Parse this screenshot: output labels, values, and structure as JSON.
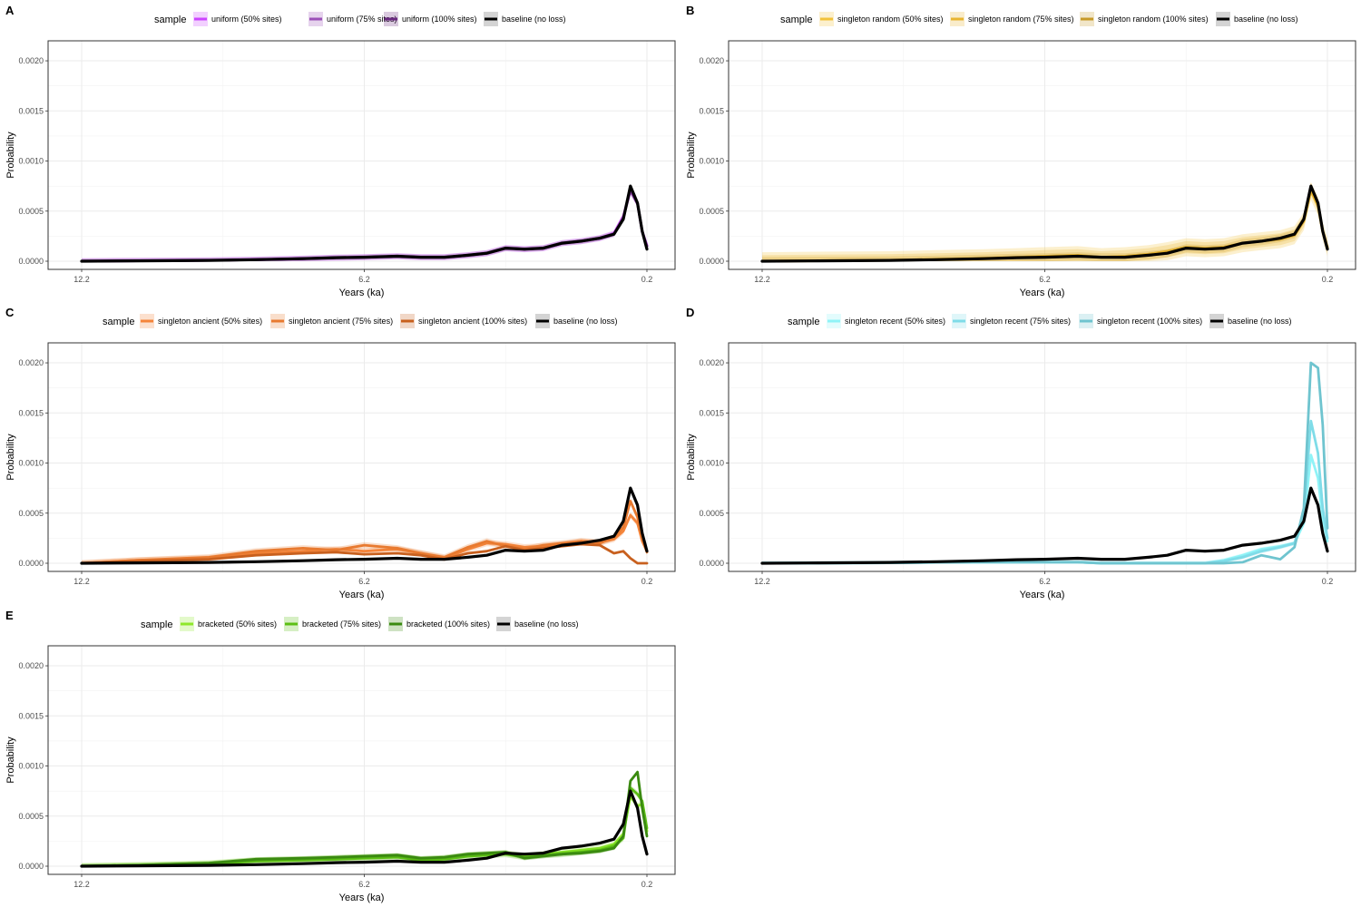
{
  "figure": {
    "legend_title": "sample",
    "xlabel": "Years (ka)",
    "ylabel": "Probability",
    "x_ticks": [
      12.2,
      6.2,
      0.2
    ],
    "x_tick_labels": [
      "12.2",
      "6.2",
      "0.2"
    ],
    "y_ticks": [
      0,
      0.0005,
      0.001,
      0.0015,
      0.002
    ],
    "y_tick_labels": [
      "0.0000",
      "0.0005",
      "0.0010",
      "0.0015",
      "0.0020"
    ]
  },
  "chart_data": [
    {
      "panel": "A",
      "type": "line",
      "xlabel": "Years (ka)",
      "ylabel": "Probability",
      "xlim": [
        12.2,
        0.2
      ],
      "ylim": [
        0,
        0.0021
      ],
      "x_reversed": true,
      "grid": true,
      "legend_position": "top",
      "legend_title": "sample",
      "x": [
        12.2,
        11.0,
        9.5,
        8.5,
        7.5,
        6.8,
        6.2,
        5.5,
        5.0,
        4.5,
        4.0,
        3.6,
        3.2,
        2.8,
        2.4,
        2.0,
        1.6,
        1.2,
        0.9,
        0.7,
        0.55,
        0.4,
        0.3,
        0.2
      ],
      "series": [
        {
          "name": "uniform (50% sites)",
          "color": "#cc44ff",
          "band": 3e-05,
          "values": [
            0.0,
            4e-06,
            8e-06,
            1.5e-05,
            2.5e-05,
            3.5e-05,
            4e-05,
            5e-05,
            4e-05,
            4e-05,
            6e-05,
            8e-05,
            0.00013,
            0.00012,
            0.00013,
            0.00018,
            0.0002,
            0.00023,
            0.00028,
            0.00045,
            0.00072,
            0.00058,
            0.0003,
            0.00016
          ]
        },
        {
          "name": "uniform (75% sites)",
          "color": "#9b4fb8",
          "band": 3e-05,
          "values": [
            0.0,
            4e-06,
            8e-06,
            1.5e-05,
            2.5e-05,
            3.5e-05,
            4e-05,
            5e-05,
            4e-05,
            4e-05,
            6e-05,
            8e-05,
            0.00013,
            0.00012,
            0.00013,
            0.00018,
            0.0002,
            0.00023,
            0.00027,
            0.00044,
            0.0007,
            0.00057,
            0.00029,
            0.00015
          ]
        },
        {
          "name": "uniform (100% sites)",
          "color": "#6a2a80",
          "band": 2e-05,
          "values": [
            0.0,
            4e-06,
            8e-06,
            1.5e-05,
            2.5e-05,
            3.5e-05,
            4e-05,
            5e-05,
            4e-05,
            4e-05,
            6e-05,
            8e-05,
            0.00013,
            0.00012,
            0.00013,
            0.00018,
            0.0002,
            0.00023,
            0.00027,
            0.00043,
            0.00072,
            0.00058,
            0.0003,
            0.00015
          ]
        },
        {
          "name": "baseline (no loss)",
          "color": "#000000",
          "band": 0,
          "values": [
            0.0,
            4e-06,
            8e-06,
            1.5e-05,
            2.5e-05,
            3.5e-05,
            4e-05,
            5e-05,
            4e-05,
            4e-05,
            6e-05,
            8e-05,
            0.00013,
            0.00012,
            0.00013,
            0.00018,
            0.0002,
            0.00023,
            0.00027,
            0.00042,
            0.00075,
            0.00058,
            0.0003,
            0.00012
          ]
        }
      ]
    },
    {
      "panel": "B",
      "type": "line",
      "xlabel": "Years (ka)",
      "ylabel": "Probability",
      "xlim": [
        12.2,
        0.2
      ],
      "ylim": [
        0,
        0.0021
      ],
      "x_reversed": true,
      "grid": true,
      "legend_position": "top",
      "legend_title": "sample",
      "x": [
        12.2,
        11.0,
        9.5,
        8.5,
        7.5,
        6.8,
        6.2,
        5.5,
        5.0,
        4.5,
        4.0,
        3.6,
        3.2,
        2.8,
        2.4,
        2.0,
        1.6,
        1.2,
        0.9,
        0.7,
        0.55,
        0.4,
        0.3,
        0.2
      ],
      "series": [
        {
          "name": "singleton random (50% sites)",
          "color": "#f2c23a",
          "band": 9e-05,
          "values": [
            0.0,
            5e-06,
            1e-05,
            2e-05,
            3e-05,
            4e-05,
            5e-05,
            6e-05,
            4e-05,
            5e-05,
            7e-05,
            0.0001,
            0.00014,
            0.00013,
            0.00014,
            0.00018,
            0.0002,
            0.00022,
            0.00026,
            0.0004,
            0.0007,
            0.00055,
            0.0003,
            0.00014
          ]
        },
        {
          "name": "singleton random (75% sites)",
          "color": "#e8b530",
          "band": 6e-05,
          "values": [
            0.0,
            5e-06,
            1e-05,
            2e-05,
            3e-05,
            4e-05,
            5e-05,
            6e-05,
            4e-05,
            5e-05,
            7e-05,
            0.0001,
            0.00014,
            0.00013,
            0.00014,
            0.00018,
            0.0002,
            0.00022,
            0.00026,
            0.0004,
            0.00072,
            0.00056,
            0.0003,
            0.00014
          ]
        },
        {
          "name": "singleton random (100% sites)",
          "color": "#c79a28",
          "band": 4e-05,
          "values": [
            0.0,
            4e-06,
            8e-06,
            1.5e-05,
            2.5e-05,
            3.5e-05,
            4e-05,
            5e-05,
            4e-05,
            4e-05,
            6e-05,
            8e-05,
            0.00013,
            0.00012,
            0.00013,
            0.00018,
            0.0002,
            0.00023,
            0.00027,
            0.00042,
            0.00074,
            0.00058,
            0.0003,
            0.00013
          ]
        },
        {
          "name": "baseline (no loss)",
          "color": "#000000",
          "band": 0,
          "values": [
            0.0,
            4e-06,
            8e-06,
            1.5e-05,
            2.5e-05,
            3.5e-05,
            4e-05,
            5e-05,
            4e-05,
            4e-05,
            6e-05,
            8e-05,
            0.00013,
            0.00012,
            0.00013,
            0.00018,
            0.0002,
            0.00023,
            0.00027,
            0.00042,
            0.00075,
            0.00058,
            0.0003,
            0.00012
          ]
        }
      ]
    },
    {
      "panel": "C",
      "type": "line",
      "xlabel": "Years (ka)",
      "ylabel": "Probability",
      "xlim": [
        12.2,
        0.2
      ],
      "ylim": [
        0,
        0.0021
      ],
      "x_reversed": true,
      "grid": true,
      "legend_position": "top",
      "legend_title": "sample",
      "x": [
        12.2,
        11.0,
        9.5,
        8.5,
        7.5,
        6.8,
        6.2,
        5.5,
        5.0,
        4.5,
        4.0,
        3.6,
        3.2,
        2.8,
        2.4,
        2.0,
        1.6,
        1.2,
        0.9,
        0.7,
        0.55,
        0.4,
        0.3,
        0.2
      ],
      "series": [
        {
          "name": "singleton ancient (50% sites)",
          "color": "#f5843a",
          "band": 3e-05,
          "values": [
            0.0,
            3e-05,
            5e-05,
            0.0001,
            0.00012,
            0.00014,
            0.00012,
            0.00014,
            0.0001,
            5e-05,
            0.00014,
            0.0002,
            0.00019,
            0.00016,
            0.00017,
            0.00019,
            0.00022,
            0.00021,
            0.00024,
            0.00032,
            0.00048,
            0.0004,
            0.00022,
            0.00012
          ]
        },
        {
          "name": "singleton ancient (75% sites)",
          "color": "#e87a30",
          "band": 3e-05,
          "values": [
            0.0,
            3e-05,
            6e-05,
            0.00012,
            0.00015,
            0.00013,
            0.00018,
            0.00015,
            0.0001,
            6e-05,
            0.00016,
            0.00022,
            0.00017,
            0.00014,
            0.00018,
            0.0002,
            0.00022,
            0.0002,
            0.00026,
            0.00036,
            0.00062,
            0.00046,
            0.00024,
            0.00011
          ]
        },
        {
          "name": "singleton ancient (100% sites)",
          "color": "#c8601e",
          "band": 1e-05,
          "values": [
            0.0,
            2e-05,
            4e-05,
            8e-05,
            0.0001,
            0.00011,
            9e-05,
            0.0001,
            8e-05,
            4e-05,
            0.0001,
            0.00012,
            0.00017,
            0.00013,
            0.00015,
            0.00017,
            0.00019,
            0.00018,
            0.0001,
            0.00012,
            5e-05,
            0.0,
            0.0,
            0.0
          ]
        },
        {
          "name": "baseline (no loss)",
          "color": "#000000",
          "band": 0,
          "values": [
            0.0,
            4e-06,
            8e-06,
            1.5e-05,
            2.5e-05,
            3.5e-05,
            4e-05,
            5e-05,
            4e-05,
            4e-05,
            6e-05,
            8e-05,
            0.00013,
            0.00012,
            0.00013,
            0.00018,
            0.0002,
            0.00023,
            0.00027,
            0.00042,
            0.00075,
            0.00058,
            0.0003,
            0.00012
          ]
        }
      ]
    },
    {
      "panel": "D",
      "type": "line",
      "xlabel": "Years (ka)",
      "ylabel": "Probability",
      "xlim": [
        12.2,
        0.2
      ],
      "ylim": [
        0,
        0.0021
      ],
      "x_reversed": true,
      "grid": true,
      "legend_position": "top",
      "legend_title": "sample",
      "x": [
        12.2,
        11.0,
        9.5,
        8.5,
        7.5,
        6.8,
        6.2,
        5.5,
        5.0,
        4.5,
        4.0,
        3.6,
        3.2,
        2.8,
        2.4,
        2.0,
        1.6,
        1.2,
        0.9,
        0.7,
        0.55,
        0.4,
        0.3,
        0.2
      ],
      "series": [
        {
          "name": "singleton recent (50% sites)",
          "color": "#8ff3f7",
          "band": 2e-05,
          "values": [
            0.0,
            2e-06,
            4e-06,
            8e-06,
            1e-05,
            1e-05,
            1e-05,
            1e-05,
            0.0,
            0.0,
            0.0,
            0.0,
            0.0,
            0.0,
            3e-05,
            8e-05,
            0.00014,
            0.00017,
            0.0002,
            0.0004,
            0.00108,
            0.00085,
            0.00045,
            0.00022
          ]
        },
        {
          "name": "singleton recent (75% sites)",
          "color": "#7fdce8",
          "band": 2e-05,
          "values": [
            0.0,
            2e-06,
            4e-06,
            8e-06,
            1e-05,
            1e-05,
            1e-05,
            1e-05,
            0.0,
            0.0,
            0.0,
            0.0,
            0.0,
            0.0,
            2e-05,
            6e-05,
            0.00012,
            0.00016,
            0.0002,
            0.0005,
            0.00142,
            0.0011,
            0.00055,
            0.00025
          ]
        },
        {
          "name": "singleton recent (100% sites)",
          "color": "#6fc4cf",
          "band": 1e-05,
          "values": [
            0.0,
            2e-06,
            4e-06,
            8e-06,
            1e-05,
            1e-05,
            1e-05,
            1e-05,
            0.0,
            0.0,
            0.0,
            0.0,
            0.0,
            0.0,
            0.0,
            1e-05,
            8e-05,
            4e-05,
            0.00016,
            0.00055,
            0.002,
            0.00195,
            0.00138,
            0.00035
          ]
        },
        {
          "name": "baseline (no loss)",
          "color": "#000000",
          "band": 0,
          "values": [
            0.0,
            4e-06,
            8e-06,
            1.5e-05,
            2.5e-05,
            3.5e-05,
            4e-05,
            5e-05,
            4e-05,
            4e-05,
            6e-05,
            8e-05,
            0.00013,
            0.00012,
            0.00013,
            0.00018,
            0.0002,
            0.00023,
            0.00027,
            0.00042,
            0.00075,
            0.00058,
            0.0003,
            0.00012
          ]
        }
      ]
    },
    {
      "panel": "E",
      "type": "line",
      "xlabel": "Years (ka)",
      "ylabel": "Probability",
      "xlim": [
        12.2,
        0.2
      ],
      "ylim": [
        0,
        0.0021
      ],
      "x_reversed": true,
      "grid": true,
      "legend_position": "top",
      "legend_title": "sample",
      "x": [
        12.2,
        11.0,
        9.5,
        8.5,
        7.5,
        6.8,
        6.2,
        5.5,
        5.0,
        4.5,
        4.0,
        3.6,
        3.2,
        2.8,
        2.4,
        2.0,
        1.6,
        1.2,
        0.9,
        0.7,
        0.55,
        0.4,
        0.3,
        0.2
      ],
      "series": [
        {
          "name": "bracketed (50% sites)",
          "color": "#8ee82a",
          "band": 3e-05,
          "values": [
            0.0,
            1e-05,
            3e-05,
            6e-05,
            7e-05,
            8e-05,
            9e-05,
            0.0001,
            7e-05,
            8e-05,
            0.00011,
            0.00012,
            0.00013,
            0.0001,
            0.00012,
            0.00014,
            0.00016,
            0.00018,
            0.00022,
            0.00032,
            0.0007,
            0.0006,
            0.00062,
            0.00035
          ]
        },
        {
          "name": "bracketed (75% sites)",
          "color": "#5cbf14",
          "band": 3e-05,
          "values": [
            0.0,
            1e-05,
            2e-05,
            5e-05,
            6e-05,
            7e-05,
            8e-05,
            9e-05,
            6e-05,
            7e-05,
            0.0001,
            0.00011,
            0.00012,
            9e-05,
            0.00011,
            0.00012,
            0.00014,
            0.00016,
            0.0002,
            0.00028,
            0.00078,
            0.00072,
            0.00065,
            0.00038
          ]
        },
        {
          "name": "bracketed (100% sites)",
          "color": "#3a8a10",
          "band": 2e-05,
          "values": [
            0.0,
            1e-05,
            3e-05,
            7e-05,
            8e-05,
            9e-05,
            0.0001,
            0.00011,
            8e-05,
            9e-05,
            0.00012,
            0.00013,
            0.00014,
            8e-05,
            0.0001,
            0.00012,
            0.00013,
            0.00015,
            0.00018,
            0.0003,
            0.00085,
            0.00094,
            0.00058,
            0.0003
          ]
        },
        {
          "name": "baseline (no loss)",
          "color": "#000000",
          "band": 0,
          "values": [
            0.0,
            4e-06,
            8e-06,
            1.5e-05,
            2.5e-05,
            3.5e-05,
            4e-05,
            5e-05,
            4e-05,
            4e-05,
            6e-05,
            8e-05,
            0.00013,
            0.00012,
            0.00013,
            0.00018,
            0.0002,
            0.00023,
            0.00027,
            0.00042,
            0.00075,
            0.00058,
            0.0003,
            0.00012
          ]
        }
      ]
    }
  ]
}
